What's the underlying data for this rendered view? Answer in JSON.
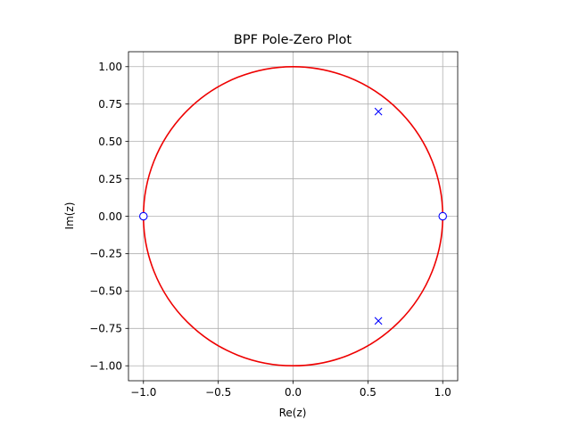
{
  "chart_data": {
    "type": "scatter",
    "title": "BPF Pole-Zero Plot",
    "xlabel": "Re(z)",
    "ylabel": "Im(z)",
    "xlim": [
      -1.1,
      1.1
    ],
    "ylim": [
      -1.1,
      1.1
    ],
    "grid": true,
    "xticks": [
      -1.0,
      -0.5,
      0.0,
      0.5,
      1.0
    ],
    "xtick_labels": [
      "−1.0",
      "−0.5",
      "0.0",
      "0.5",
      "1.0"
    ],
    "yticks": [
      -1.0,
      -0.75,
      -0.5,
      -0.25,
      0.0,
      0.25,
      0.5,
      0.75,
      1.0
    ],
    "ytick_labels": [
      "−1.00",
      "−0.75",
      "−0.50",
      "−0.25",
      "0.00",
      "0.25",
      "0.50",
      "0.75",
      "1.00"
    ],
    "unit_circle": {
      "radius": 1.0,
      "color": "#ee0000"
    },
    "poles": {
      "marker": "x",
      "color": "#0000ff",
      "points": [
        {
          "x": 0.57,
          "y": 0.7
        },
        {
          "x": 0.57,
          "y": -0.7
        }
      ]
    },
    "zeros": {
      "marker": "o",
      "color": "#0000ff",
      "points": [
        {
          "x": -1.0,
          "y": 0.0
        },
        {
          "x": 1.0,
          "y": 0.0
        }
      ]
    }
  }
}
